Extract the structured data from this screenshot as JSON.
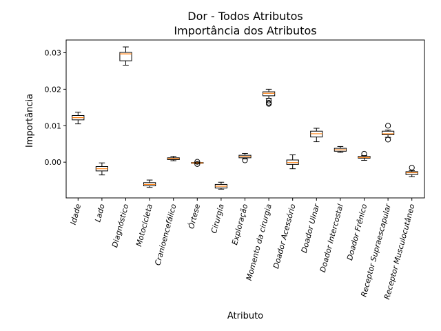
{
  "chart_data": {
    "type": "box",
    "title": "Dor - Todos Atributos",
    "subtitle": "Importância dos Atributos",
    "xlabel": "Atributo",
    "ylabel": "Importância",
    "ylim": [
      -0.0098,
      0.0335
    ],
    "yticks": [
      0.0,
      0.01,
      0.02,
      0.03
    ],
    "ytick_labels": [
      "0.00",
      "0.01",
      "0.02",
      "0.03"
    ],
    "grid": false,
    "box_color": "#000000",
    "median_color": "#ff7f0e",
    "categories": [
      "Idade",
      "Lado",
      "Diagnóstico",
      "Motocicleta",
      "Cranioencefálico",
      "Órtese",
      "Cirurgia",
      "Exploração",
      "Momento da cirurgia",
      "Doador Acessório",
      "Doador Ulnar",
      "Doador Intercostal",
      "Doador Frênico",
      "Receptor Supraescapular",
      "Receptor Musculocutâneo"
    ],
    "boxes": [
      {
        "whislo": 0.0105,
        "q1": 0.0116,
        "med": 0.0122,
        "q3": 0.0128,
        "whishi": 0.0137,
        "fliers": []
      },
      {
        "whislo": -0.0035,
        "q1": -0.0024,
        "med": -0.0018,
        "q3": -0.0012,
        "whishi": -0.0002,
        "fliers": []
      },
      {
        "whislo": 0.0266,
        "q1": 0.0278,
        "med": 0.0297,
        "q3": 0.0301,
        "whishi": 0.0316,
        "fliers": []
      },
      {
        "whislo": -0.0069,
        "q1": -0.0065,
        "med": -0.0061,
        "q3": -0.0056,
        "whishi": -0.0049,
        "fliers": []
      },
      {
        "whislo": 0.0004,
        "q1": 0.0007,
        "med": 0.001,
        "q3": 0.0012,
        "whishi": 0.0016,
        "fliers": []
      },
      {
        "whislo": -0.0004,
        "q1": -0.0003,
        "med": -0.0002,
        "q3": -0.0001,
        "whishi": 0.0,
        "fliers": [
          -0.0005,
          0.0001
        ]
      },
      {
        "whislo": -0.0074,
        "q1": -0.0071,
        "med": -0.0066,
        "q3": -0.0061,
        "whishi": -0.0055,
        "fliers": []
      },
      {
        "whislo": 0.0009,
        "q1": 0.0012,
        "med": 0.0016,
        "q3": 0.0019,
        "whishi": 0.0024,
        "fliers": [
          0.0005
        ]
      },
      {
        "whislo": 0.0175,
        "q1": 0.0182,
        "med": 0.0189,
        "q3": 0.0193,
        "whishi": 0.02,
        "fliers": [
          0.016,
          0.0163,
          0.0169
        ]
      },
      {
        "whislo": -0.0018,
        "q1": -0.0006,
        "med": -0.0001,
        "q3": 0.0006,
        "whishi": 0.002,
        "fliers": []
      },
      {
        "whislo": 0.0056,
        "q1": 0.0069,
        "med": 0.0078,
        "q3": 0.0085,
        "whishi": 0.0093,
        "fliers": []
      },
      {
        "whislo": 0.0027,
        "q1": 0.003,
        "med": 0.0034,
        "q3": 0.0038,
        "whishi": 0.0043,
        "fliers": []
      },
      {
        "whislo": 0.0005,
        "q1": 0.0011,
        "med": 0.0013,
        "q3": 0.0016,
        "whishi": 0.0018,
        "fliers": [
          0.0023
        ]
      },
      {
        "whislo": 0.0068,
        "q1": 0.0075,
        "med": 0.0078,
        "q3": 0.0085,
        "whishi": 0.0088,
        "fliers": [
          0.0062,
          0.01
        ]
      },
      {
        "whislo": -0.004,
        "q1": -0.0034,
        "med": -0.0029,
        "q3": -0.0026,
        "whishi": -0.0023,
        "fliers": [
          -0.0015
        ]
      }
    ]
  }
}
